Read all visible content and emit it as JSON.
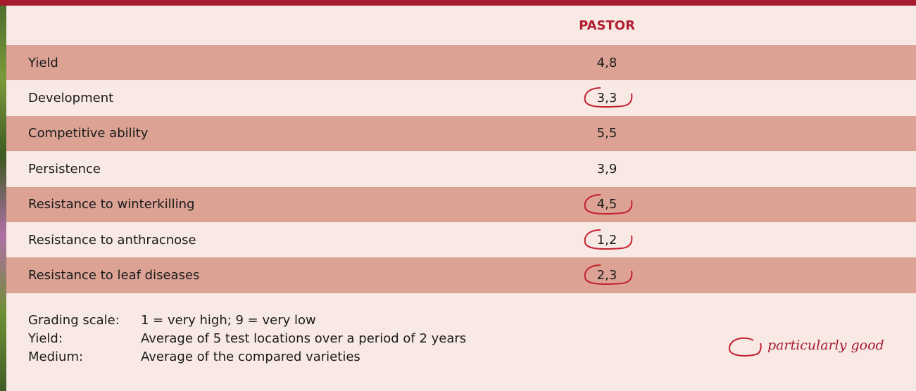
{
  "table": {
    "header": "PASTOR",
    "rows": [
      {
        "label": "Yield",
        "value": "4,8",
        "highlight": false
      },
      {
        "label": "Development",
        "value": "3,3",
        "highlight": true
      },
      {
        "label": "Competitive ability",
        "value": "5,5",
        "highlight": false
      },
      {
        "label": "Persistence",
        "value": "3,9",
        "highlight": false
      },
      {
        "label": "Resistance to winterkilling",
        "value": "4,5",
        "highlight": true
      },
      {
        "label": "Resistance to anthracnose",
        "value": "1,2",
        "highlight": true
      },
      {
        "label": "Resistance to leaf diseases",
        "value": "2,3",
        "highlight": true
      }
    ]
  },
  "notes": [
    {
      "term": "Grading scale:",
      "text": "1 = very high; 9 = very low"
    },
    {
      "term": "Yield:",
      "text": "Average of 5 test locations over a period of 2 years"
    },
    {
      "term": "Medium:",
      "text": "Average of the compared varieties"
    }
  ],
  "legend": "particularly good"
}
